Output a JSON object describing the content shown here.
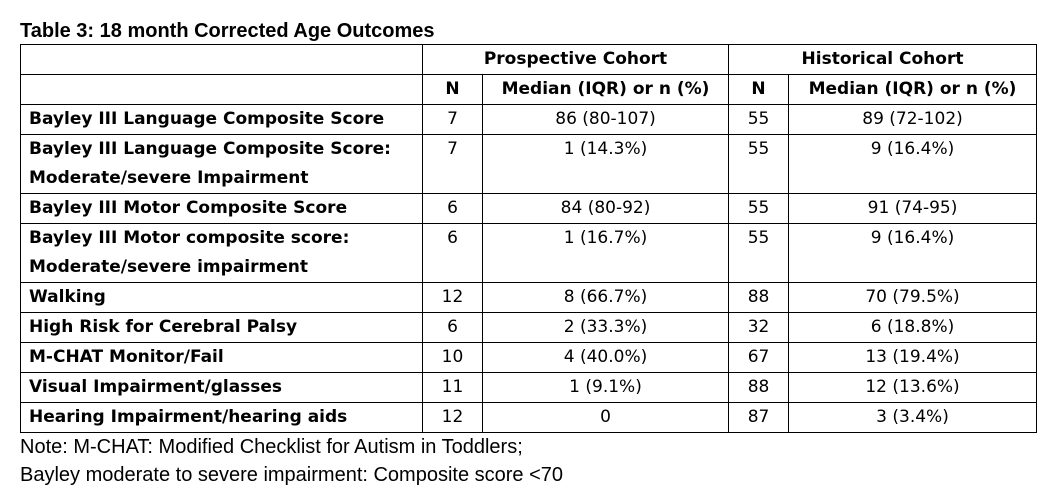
{
  "title": "Table 3: 18 month Corrected Age Outcomes",
  "columns": {
    "group_prospective": "Prospective Cohort",
    "group_historical": "Historical Cohort",
    "n_label": "N",
    "stat_label": "Median (IQR) or n (%)"
  },
  "rows": [
    {
      "label": "Bayley III Language Composite Score",
      "p_n": "7",
      "p_val": "86 (80-107)",
      "h_n": "55",
      "h_val": "89 (72-102)"
    },
    {
      "label": "Bayley III Language Composite Score: Moderate/severe Impairment",
      "p_n": "7",
      "p_val": "1 (14.3%)",
      "h_n": "55",
      "h_val": "9 (16.4%)"
    },
    {
      "label": "Bayley III Motor Composite Score",
      "p_n": "6",
      "p_val": "84 (80-92)",
      "h_n": "55",
      "h_val": "91 (74-95)"
    },
    {
      "label": "Bayley III Motor composite score: Moderate/severe impairment",
      "p_n": "6",
      "p_val": "1 (16.7%)",
      "h_n": "55",
      "h_val": "9 (16.4%)"
    },
    {
      "label": "Walking",
      "p_n": "12",
      "p_val": "8 (66.7%)",
      "h_n": "88",
      "h_val": "70 (79.5%)"
    },
    {
      "label": "High Risk for Cerebral Palsy",
      "p_n": "6",
      "p_val": "2 (33.3%)",
      "h_n": "32",
      "h_val": "6 (18.8%)"
    },
    {
      "label": "M-CHAT Monitor/Fail",
      "p_n": "10",
      "p_val": "4 (40.0%)",
      "h_n": "67",
      "h_val": "13 (19.4%)"
    },
    {
      "label": "Visual Impairment/glasses",
      "p_n": "11",
      "p_val": "1 (9.1%)",
      "h_n": "88",
      "h_val": "12 (13.6%)"
    },
    {
      "label": "Hearing Impairment/hearing aids",
      "p_n": "12",
      "p_val": "0",
      "h_n": "87",
      "h_val": "3 (3.4%)"
    }
  ],
  "notes": [
    "Note: M-CHAT: Modified Checklist for Autism in Toddlers;",
    "Bayley moderate to severe impairment: Composite score <70"
  ]
}
